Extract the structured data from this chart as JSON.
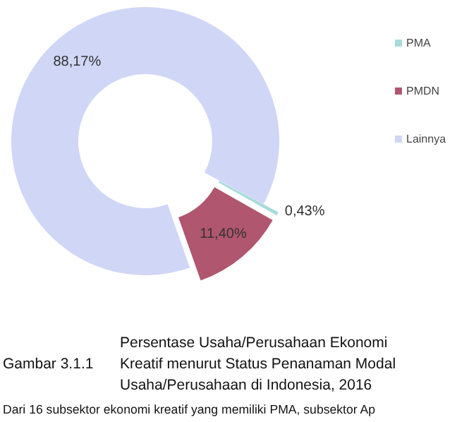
{
  "chart_data": {
    "type": "donut",
    "title": "Persentase Usaha/Perusahaan Ekonomi Kreatif menurut Status Penanaman Modal Usaha/Perusahaan di Indonesia, 2016",
    "categories": [
      "PMA",
      "PMDN",
      "Lainnya"
    ],
    "values": [
      0.43,
      11.4,
      88.17
    ],
    "value_labels": [
      "0,43%",
      "11,40%",
      "88,17%"
    ],
    "colors": [
      "#a8dcdc",
      "#b0566e",
      "#d0d6f6"
    ],
    "legend": "right",
    "annotations": [
      "Gambar 3.1.1",
      "Dari 16 subsektor ekonomi kreatif yang memiliki PMA, subsektor Ap"
    ]
  }
}
